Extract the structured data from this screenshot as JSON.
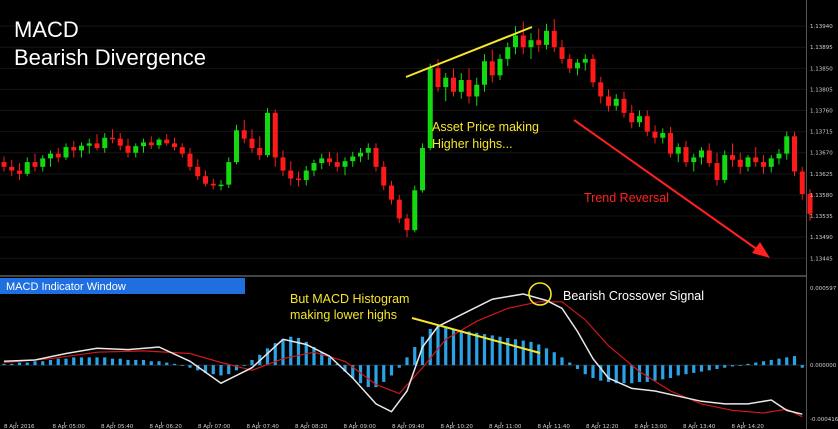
{
  "title_line1": "MACD",
  "title_line2": "Bearish Divergence",
  "annotations": {
    "price_higher_highs_1": "Asset Price making",
    "price_higher_highs_2": "Higher highs...",
    "trend_reversal": "Trend Reversal",
    "macd_lower_highs_1": "But MACD Histogram",
    "macd_lower_highs_2": "making lower highs",
    "bearish_crossover": "Bearish Crossover Signal"
  },
  "indicator_window_label": "MACD Indicator Window",
  "colors": {
    "bull": "#12d912",
    "bear": "#ff1a1a",
    "histogram": "#2aa2e6",
    "macd_line": "#e8e8e8",
    "signal_line": "#d01818",
    "trendline": "#f5e62a",
    "arrow": "#ff2020",
    "label_bar": "#1f6fe0"
  },
  "chart_data": [
    {
      "type": "candlestick",
      "y_ticks": [
        "1.13940",
        "1.13895",
        "1.13850",
        "1.13805",
        "1.13760",
        "1.13715",
        "1.13670",
        "1.13625",
        "1.13580",
        "1.13535",
        "1.13490",
        "1.13445"
      ],
      "ylim": [
        1.1342,
        1.13985
      ],
      "x_ticks": [
        "8 Apr 2016",
        "8 Apr 05:00",
        "8 Apr 05:40",
        "8 Apr 06:20",
        "8 Apr 07:00",
        "8 Apr 07:40",
        "8 Apr 08:20",
        "8 Apr 09:00",
        "8 Apr 09:40",
        "8 Apr 10:20",
        "8 Apr 11:00",
        "8 Apr 11:40",
        "8 Apr 12:20",
        "8 Apr 13:00",
        "8 Apr 13:40",
        "8 Apr 14:20"
      ],
      "ohlc": [
        [
          1.1365,
          1.13662,
          1.1363,
          1.1364
        ],
        [
          1.1364,
          1.13655,
          1.1362,
          1.13632
        ],
        [
          1.13632,
          1.13648,
          1.13612,
          1.13625
        ],
        [
          1.13625,
          1.1366,
          1.1362,
          1.1365
        ],
        [
          1.1365,
          1.13668,
          1.1363,
          1.1364
        ],
        [
          1.1364,
          1.13665,
          1.1363,
          1.13658
        ],
        [
          1.13658,
          1.13675,
          1.1364,
          1.13668
        ],
        [
          1.13668,
          1.1368,
          1.1365,
          1.1366
        ],
        [
          1.1366,
          1.1369,
          1.13655,
          1.13682
        ],
        [
          1.13682,
          1.13695,
          1.1366,
          1.13675
        ],
        [
          1.13675,
          1.13692,
          1.1366,
          1.13685
        ],
        [
          1.13685,
          1.137,
          1.13668,
          1.1369
        ],
        [
          1.1369,
          1.1371,
          1.13675,
          1.1368
        ],
        [
          1.1368,
          1.13712,
          1.1367,
          1.13702
        ],
        [
          1.13702,
          1.1372,
          1.1369,
          1.137
        ],
        [
          1.137,
          1.13712,
          1.13675,
          1.13685
        ],
        [
          1.13685,
          1.137,
          1.1366,
          1.1367
        ],
        [
          1.1367,
          1.1369,
          1.1366,
          1.13684
        ],
        [
          1.13684,
          1.137,
          1.1367,
          1.13692
        ],
        [
          1.13692,
          1.13705,
          1.13678,
          1.13686
        ],
        [
          1.13686,
          1.13702,
          1.13678,
          1.13698
        ],
        [
          1.13698,
          1.1371,
          1.13685,
          1.1369
        ],
        [
          1.1369,
          1.13702,
          1.13675,
          1.13682
        ],
        [
          1.13682,
          1.1369,
          1.1366,
          1.13668
        ],
        [
          1.13668,
          1.1368,
          1.13632,
          1.1364
        ],
        [
          1.1364,
          1.13656,
          1.13612,
          1.1362
        ],
        [
          1.1362,
          1.13632,
          1.13598,
          1.13604
        ],
        [
          1.13604,
          1.13615,
          1.13592,
          1.136
        ],
        [
          1.136,
          1.13612,
          1.1359,
          1.13602
        ],
        [
          1.13602,
          1.1366,
          1.13595,
          1.1365
        ],
        [
          1.1365,
          1.1373,
          1.13645,
          1.13718
        ],
        [
          1.13718,
          1.1374,
          1.1369,
          1.137
        ],
        [
          1.137,
          1.1372,
          1.1367,
          1.1368
        ],
        [
          1.1368,
          1.13705,
          1.13655,
          1.13665
        ],
        [
          1.13665,
          1.13765,
          1.1366,
          1.13755
        ],
        [
          1.13755,
          1.13762,
          1.1364,
          1.1366
        ],
        [
          1.1366,
          1.13675,
          1.1362,
          1.13632
        ],
        [
          1.13632,
          1.13652,
          1.136,
          1.13615
        ],
        [
          1.13615,
          1.1363,
          1.13598,
          1.13612
        ],
        [
          1.13612,
          1.13642,
          1.136,
          1.13632
        ],
        [
          1.13632,
          1.13655,
          1.1362,
          1.13648
        ],
        [
          1.13648,
          1.13668,
          1.13635,
          1.13658
        ],
        [
          1.13658,
          1.13672,
          1.13642,
          1.1365
        ],
        [
          1.1365,
          1.1367,
          1.1363,
          1.1364
        ],
        [
          1.1364,
          1.1366,
          1.13622,
          1.13652
        ],
        [
          1.13652,
          1.13672,
          1.1364,
          1.13662
        ],
        [
          1.13662,
          1.1368,
          1.1365,
          1.1367
        ],
        [
          1.1367,
          1.1369,
          1.13655,
          1.1368
        ],
        [
          1.1368,
          1.1369,
          1.1363,
          1.1364
        ],
        [
          1.1364,
          1.13652,
          1.1359,
          1.136
        ],
        [
          1.136,
          1.1361,
          1.1356,
          1.1357
        ],
        [
          1.1357,
          1.1358,
          1.1352,
          1.1353
        ],
        [
          1.1353,
          1.1354,
          1.1349,
          1.13505
        ],
        [
          1.13505,
          1.136,
          1.135,
          1.1359
        ],
        [
          1.1359,
          1.1369,
          1.13585,
          1.1368
        ],
        [
          1.1368,
          1.1386,
          1.13675,
          1.1385
        ],
        [
          1.1385,
          1.1387,
          1.138,
          1.1381
        ],
        [
          1.1381,
          1.1384,
          1.1378,
          1.1383
        ],
        [
          1.1383,
          1.1385,
          1.1379,
          1.138
        ],
        [
          1.138,
          1.1384,
          1.13785,
          1.13825
        ],
        [
          1.13825,
          1.1385,
          1.13775,
          1.1379
        ],
        [
          1.1379,
          1.1383,
          1.1377,
          1.13815
        ],
        [
          1.13815,
          1.1388,
          1.138,
          1.13865
        ],
        [
          1.13865,
          1.1389,
          1.1382,
          1.13835
        ],
        [
          1.13835,
          1.1388,
          1.13825,
          1.1387
        ],
        [
          1.1387,
          1.13905,
          1.13855,
          1.13895
        ],
        [
          1.13895,
          1.1394,
          1.1388,
          1.1392
        ],
        [
          1.1392,
          1.1395,
          1.1388,
          1.13895
        ],
        [
          1.13895,
          1.13925,
          1.1387,
          1.1391
        ],
        [
          1.1391,
          1.13935,
          1.13885,
          1.139
        ],
        [
          1.139,
          1.13945,
          1.1389,
          1.1393
        ],
        [
          1.1393,
          1.13955,
          1.13885,
          1.13895
        ],
        [
          1.13895,
          1.1391,
          1.1386,
          1.1387
        ],
        [
          1.1387,
          1.1388,
          1.1384,
          1.1385
        ],
        [
          1.1385,
          1.1387,
          1.13835,
          1.13862
        ],
        [
          1.13862,
          1.1388,
          1.13845,
          1.1387
        ],
        [
          1.1387,
          1.1388,
          1.1381,
          1.1382
        ],
        [
          1.1382,
          1.13832,
          1.13775,
          1.1379
        ],
        [
          1.1379,
          1.13805,
          1.13758,
          1.1377
        ],
        [
          1.1377,
          1.13795,
          1.1376,
          1.13785
        ],
        [
          1.13785,
          1.138,
          1.13745,
          1.13755
        ],
        [
          1.13755,
          1.13772,
          1.13722,
          1.13735
        ],
        [
          1.13735,
          1.1376,
          1.13725,
          1.13748
        ],
        [
          1.13748,
          1.1376,
          1.13705,
          1.13715
        ],
        [
          1.13715,
          1.13728,
          1.1369,
          1.13702
        ],
        [
          1.13702,
          1.13722,
          1.1369,
          1.13712
        ],
        [
          1.13712,
          1.13725,
          1.1366,
          1.13668
        ],
        [
          1.13668,
          1.1369,
          1.1365,
          1.13682
        ],
        [
          1.13682,
          1.13695,
          1.1364,
          1.1365
        ],
        [
          1.1365,
          1.13668,
          1.1363,
          1.1366
        ],
        [
          1.1366,
          1.13682,
          1.13645,
          1.13675
        ],
        [
          1.13675,
          1.1369,
          1.1364,
          1.13648
        ],
        [
          1.13648,
          1.1367,
          1.136,
          1.13612
        ],
        [
          1.13612,
          1.13675,
          1.13605,
          1.13665
        ],
        [
          1.13665,
          1.1369,
          1.1364,
          1.13655
        ],
        [
          1.13655,
          1.1367,
          1.13625,
          1.1364
        ],
        [
          1.1364,
          1.13665,
          1.1363,
          1.1366
        ],
        [
          1.1366,
          1.13682,
          1.1364,
          1.1365
        ],
        [
          1.1365,
          1.13665,
          1.13625,
          1.1364
        ],
        [
          1.1364,
          1.13665,
          1.13628,
          1.13658
        ],
        [
          1.13658,
          1.13678,
          1.13645,
          1.13668
        ],
        [
          1.13668,
          1.13715,
          1.13655,
          1.13705
        ],
        [
          1.13705,
          1.13715,
          1.1362,
          1.1363
        ],
        [
          1.1363,
          1.1364,
          1.1357,
          1.13582
        ],
        [
          1.13582,
          1.13592,
          1.13525,
          1.1354
        ]
      ]
    },
    {
      "type": "bar+line",
      "y_ticks": [
        "0.000597",
        "0.000000",
        "-0.000416"
      ],
      "ylim": [
        -0.00044,
        0.00062
      ],
      "histogram": [
        1e-05,
        1e-05,
        2e-05,
        2e-05,
        3e-05,
        3e-05,
        4e-05,
        5e-05,
        5e-05,
        6e-05,
        6e-05,
        6e-05,
        6e-05,
        6e-05,
        5e-05,
        5e-05,
        4e-05,
        4e-05,
        4e-05,
        3e-05,
        3e-05,
        2e-05,
        1e-05,
        0.0,
        -2e-05,
        -4e-05,
        -6e-05,
        -7e-05,
        -8e-05,
        -7e-05,
        -4e-05,
        0.0,
        4e-05,
        8e-05,
        0.00013,
        0.00017,
        0.0002,
        0.00022,
        0.00021,
        0.00018,
        0.00014,
        0.0001,
        6e-05,
        1e-05,
        -5e-05,
        -0.0001,
        -0.00014,
        -0.00017,
        -0.00017,
        -0.00013,
        -8e-05,
        -2e-05,
        6e-05,
        0.00014,
        0.00022,
        0.00028,
        0.0003,
        0.00029,
        0.00028,
        0.00027,
        0.00026,
        0.00025,
        0.00024,
        0.00023,
        0.00022,
        0.00021,
        0.0002,
        0.00019,
        0.00018,
        0.00016,
        0.00013,
        0.0001,
        6e-05,
        2e-05,
        -3e-05,
        -7e-05,
        -0.0001,
        -0.00012,
        -0.00013,
        -0.00014,
        -0.00014,
        -0.00014,
        -0.00013,
        -0.00013,
        -0.00012,
        -0.00011,
        -0.0001,
        -8e-05,
        -7e-05,
        -6e-05,
        -5e-05,
        -4e-05,
        -3e-05,
        -2e-05,
        -1e-05,
        0.0,
        1e-05,
        2e-05,
        3e-05,
        4e-05,
        5e-05,
        6e-05,
        7e-05,
        -2e-05
      ],
      "macd_line": [
        [
          0,
          3e-05
        ],
        [
          4,
          4e-05
        ],
        [
          8,
          9e-05
        ],
        [
          12,
          0.00013
        ],
        [
          16,
          0.00012
        ],
        [
          20,
          0.00014
        ],
        [
          24,
          3e-05
        ],
        [
          28,
          -0.00014
        ],
        [
          32,
          -2e-05
        ],
        [
          36,
          0.0002
        ],
        [
          39,
          0.00016
        ],
        [
          42,
          7e-05
        ],
        [
          45,
          -0.0001
        ],
        [
          48,
          -0.0003
        ],
        [
          50,
          -0.00036
        ],
        [
          52,
          -0.0002
        ],
        [
          54,
          0.00014
        ],
        [
          56,
          0.0003
        ],
        [
          59,
          0.00039
        ],
        [
          63,
          0.00051
        ],
        [
          67,
          0.00055
        ],
        [
          70,
          0.0005
        ],
        [
          72,
          0.00044
        ],
        [
          74,
          0.00026
        ],
        [
          76,
          5e-05
        ],
        [
          78,
          -0.0001
        ],
        [
          81,
          -0.00018
        ],
        [
          84,
          -0.0002
        ],
        [
          87,
          -0.00024
        ],
        [
          90,
          -0.00028
        ],
        [
          93,
          -0.0003
        ],
        [
          96,
          -0.0003
        ],
        [
          99,
          -0.00027
        ],
        [
          101,
          -0.00035
        ],
        [
          103,
          -0.00038
        ]
      ],
      "signal_line": [
        [
          0,
          2e-05
        ],
        [
          6,
          5e-05
        ],
        [
          12,
          0.0001
        ],
        [
          18,
          0.00011
        ],
        [
          24,
          9e-05
        ],
        [
          28,
          2e-05
        ],
        [
          32,
          -4e-05
        ],
        [
          36,
          5e-05
        ],
        [
          40,
          0.0001
        ],
        [
          44,
          3e-05
        ],
        [
          48,
          -0.00015
        ],
        [
          51,
          -0.00022
        ],
        [
          54,
          -2e-05
        ],
        [
          57,
          0.0002
        ],
        [
          61,
          0.00034
        ],
        [
          65,
          0.00044
        ],
        [
          69,
          0.00049
        ],
        [
          72,
          0.00049
        ],
        [
          75,
          0.00035
        ],
        [
          78,
          0.00015
        ],
        [
          82,
          -5e-05
        ],
        [
          86,
          -0.0002
        ],
        [
          90,
          -0.0003
        ],
        [
          94,
          -0.00035
        ],
        [
          98,
          -0.00037
        ],
        [
          101,
          -0.00034
        ],
        [
          103,
          -0.0004
        ]
      ]
    }
  ]
}
